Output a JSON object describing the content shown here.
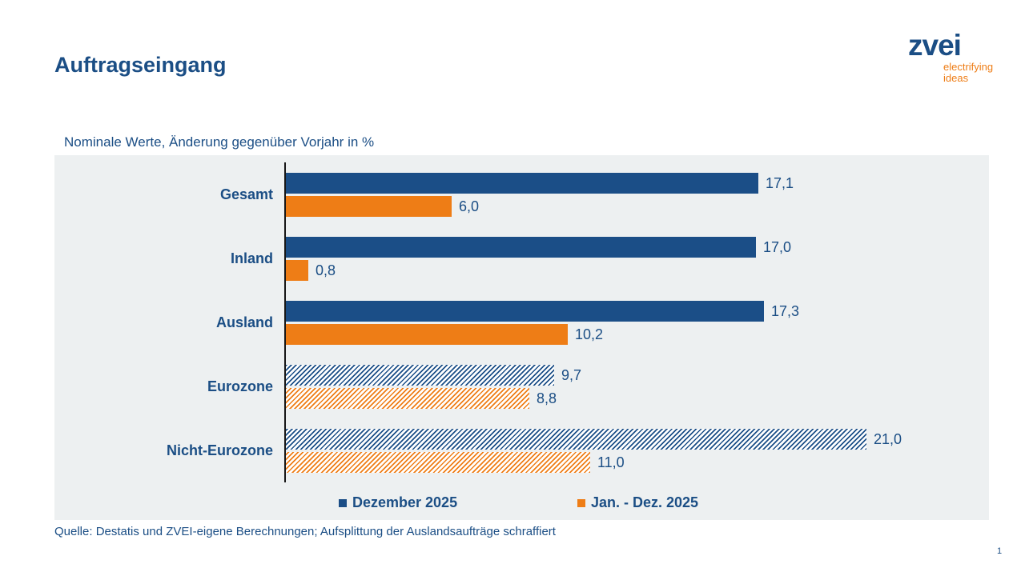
{
  "page": {
    "title": "Auftragseingang",
    "page_number": "1"
  },
  "logo": {
    "brand": "zvei",
    "tagline_line1": "electrifying",
    "tagline_line2": "ideas"
  },
  "chart": {
    "subtitle": "Nominale Werte, Änderung gegenüber Vorjahr in %"
  },
  "footer": {
    "source": "Quelle: Destatis und ZVEI-eigene Berechnungen; Aufsplittung der Auslandsaufträge schraffiert"
  },
  "colors": {
    "primary_blue": "#1B4E87",
    "accent_orange": "#EE7D16",
    "text_blue": "#1B4E85",
    "chart_background": "#EDF0F1"
  },
  "chart_data": {
    "type": "bar",
    "orientation": "horizontal",
    "title": "Auftragseingang",
    "subtitle": "Nominale Werte, Änderung gegenüber Vorjahr in %",
    "categories": [
      "Gesamt",
      "Inland",
      "Ausland",
      "Eurozone",
      "Nicht-Eurozone"
    ],
    "series": [
      {
        "name": "Dezember 2025",
        "color": "#1B4E87",
        "values": [
          17.1,
          17.0,
          17.3,
          9.7,
          21.0
        ],
        "value_labels": [
          "17,1",
          "17,0",
          "17,3",
          "9,7",
          "21,0"
        ]
      },
      {
        "name": "Jan. - Dez. 2025",
        "color": "#EE7D16",
        "values": [
          6.0,
          0.8,
          10.2,
          8.8,
          11.0
        ],
        "value_labels": [
          "6,0",
          "0,8",
          "10,2",
          "8,8",
          "11,0"
        ]
      }
    ],
    "hatched_rows": [
      false,
      false,
      false,
      true,
      true
    ],
    "hatch_note": "Aufsplittung der Auslandsaufträge schraffiert",
    "xlim": [
      0,
      25.5
    ],
    "grid": false,
    "legend_position": "bottom"
  }
}
